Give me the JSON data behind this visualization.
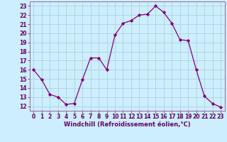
{
  "x": [
    0,
    1,
    2,
    3,
    4,
    5,
    6,
    7,
    8,
    9,
    10,
    11,
    12,
    13,
    14,
    15,
    16,
    17,
    18,
    19,
    20,
    21,
    22,
    23
  ],
  "y": [
    16.0,
    14.9,
    13.3,
    13.0,
    12.2,
    12.3,
    14.9,
    17.3,
    17.3,
    16.0,
    19.8,
    21.1,
    21.4,
    22.0,
    22.1,
    23.0,
    22.3,
    21.1,
    19.3,
    19.2,
    16.0,
    13.1,
    12.3,
    11.9
  ],
  "line_color": "#800080",
  "marker": "D",
  "marker_size": 2.2,
  "bg_color": "#cceeff",
  "grid_color": "#aacccc",
  "xlabel": "Windchill (Refroidissement éolien,°C)",
  "ylim": [
    11.5,
    23.5
  ],
  "xlim": [
    -0.5,
    23.5
  ],
  "yticks": [
    12,
    13,
    14,
    15,
    16,
    17,
    18,
    19,
    20,
    21,
    22,
    23
  ],
  "xticks": [
    0,
    1,
    2,
    3,
    4,
    5,
    6,
    7,
    8,
    9,
    10,
    11,
    12,
    13,
    14,
    15,
    16,
    17,
    18,
    19,
    20,
    21,
    22,
    23
  ],
  "tick_labelsize": 5.5,
  "xlabel_fontsize": 6.0,
  "line_width": 0.9
}
